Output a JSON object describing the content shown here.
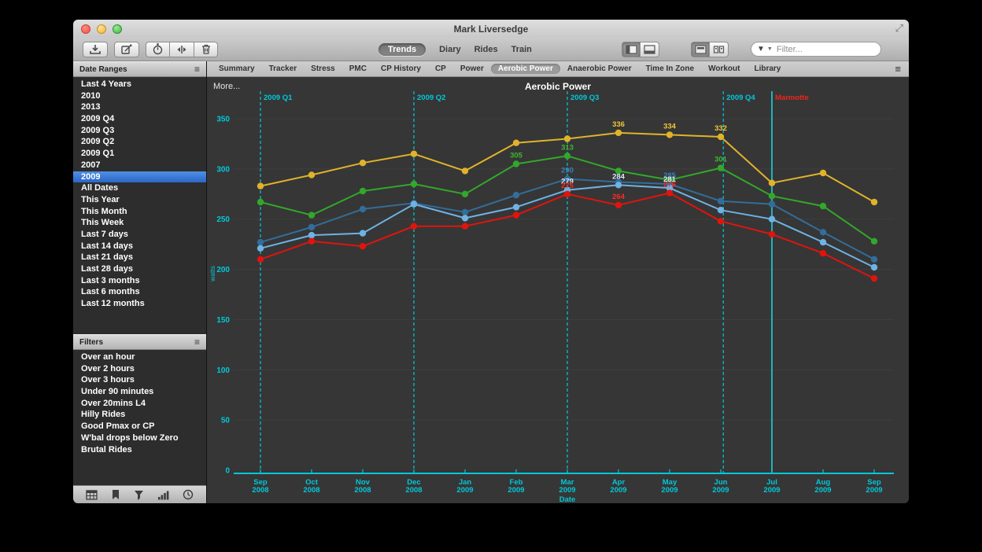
{
  "window": {
    "title": "Mark Liversedge"
  },
  "toolbar": {
    "left_icons": [
      "download-icon",
      "compose-icon",
      "stopwatch-icon",
      "split-compare-icon",
      "trash-icon"
    ],
    "view_segments": {
      "items": [
        "Trends",
        "Diary",
        "Rides",
        "Train"
      ],
      "selected": "Trends"
    },
    "panel_toggles": [
      "sidebar-toggle-icon",
      "bottom-pane-toggle-icon"
    ],
    "layout_toggles": [
      "single-view-icon",
      "tiled-view-icon"
    ],
    "filter": {
      "placeholder": "Filter..."
    }
  },
  "sidebar": {
    "date_ranges": {
      "title": "Date Ranges",
      "selected": "2009",
      "items": [
        "Last 4 Years",
        "2010",
        "2013",
        "2009 Q4",
        "2009 Q3",
        "2009 Q2",
        "2009 Q1",
        "2007",
        "2009",
        "All Dates",
        "This Year",
        "This Month",
        "This Week",
        "Last 7 days",
        "Last 14 days",
        "Last 21 days",
        "Last 28 days",
        "Last 3 months",
        "Last 6 months",
        "Last 12 months"
      ]
    },
    "filters": {
      "title": "Filters",
      "items": [
        "Over an hour",
        "Over 2 hours",
        "Over 3 hours",
        "Under 90 minutes",
        "Over 20mins L4",
        "Hilly Rides",
        "Good Pmax or CP",
        "W'bal drops below Zero",
        "Brutal Rides"
      ]
    },
    "footer_icons": [
      "summary-table-icon",
      "bookmark-icon",
      "filter-funnel-icon",
      "bar-chart-icon",
      "clock-icon"
    ]
  },
  "tabs": {
    "items": [
      "Summary",
      "Tracker",
      "Stress",
      "PMC",
      "CP History",
      "CP",
      "Power",
      "Aerobic Power",
      "Anaerobic Power",
      "Time In Zone",
      "Workout",
      "Library"
    ],
    "selected": "Aerobic Power"
  },
  "chart_data": {
    "type": "line",
    "title": "Aerobic Power",
    "more_label": "More...",
    "xlabel": "Date",
    "ylabel": "watts",
    "ylim": [
      0,
      350
    ],
    "yticks": [
      0,
      50,
      100,
      150,
      200,
      250,
      300,
      350
    ],
    "grid": true,
    "legend_position": "none",
    "axis_color": "#00c8da",
    "grid_color": "#3f3f3f",
    "x_categories": [
      "Sep 2008",
      "Oct 2008",
      "Nov 2008",
      "Dec 2008",
      "Jan 2009",
      "Feb 2009",
      "Mar 2009",
      "Apr 2009",
      "May 2009",
      "Jun 2009",
      "Jul 2009",
      "Aug 2009",
      "Sep 2009"
    ],
    "series": [
      {
        "name": "yellow",
        "color": "#e0b32a",
        "label_color": "#f0c63d",
        "values": [
          283,
          294,
          306,
          315,
          298,
          326,
          330,
          336,
          334,
          332,
          286,
          296,
          267
        ],
        "point_labels": [
          null,
          null,
          null,
          null,
          null,
          null,
          null,
          "336",
          "334",
          "332",
          null,
          null,
          null
        ]
      },
      {
        "name": "green",
        "color": "#32a82a",
        "label_color": "#3cb832",
        "values": [
          267,
          254,
          278,
          285,
          275,
          305,
          313,
          298,
          289,
          301,
          273,
          263,
          228
        ],
        "point_labels": [
          null,
          null,
          null,
          null,
          null,
          "305",
          "313",
          null,
          null,
          "301",
          null,
          null,
          null
        ]
      },
      {
        "name": "steel-blue",
        "color": "#336d99",
        "label_color": "#3d7fb5",
        "values": [
          227,
          242,
          260,
          266,
          257,
          274,
          290,
          287,
          285,
          268,
          265,
          237,
          210
        ],
        "point_labels": [
          null,
          null,
          null,
          null,
          null,
          null,
          "290",
          null,
          "285",
          null,
          null,
          null,
          null
        ]
      },
      {
        "name": "light-blue",
        "color": "#6fb2e4",
        "label_color": "#d8e9f8",
        "values": [
          221,
          234,
          236,
          265,
          251,
          262,
          279,
          284,
          281,
          259,
          250,
          227,
          202
        ],
        "point_labels": [
          null,
          null,
          null,
          null,
          null,
          null,
          "279",
          "284",
          "281",
          null,
          null,
          null,
          null
        ]
      },
      {
        "name": "red",
        "color": "#e0140e",
        "label_color": "#ff2a20",
        "values": [
          210,
          228,
          223,
          243,
          243,
          254,
          275,
          264,
          276,
          248,
          235,
          216,
          191
        ],
        "point_labels": [
          null,
          null,
          null,
          null,
          null,
          null,
          "275",
          "264",
          "276",
          null,
          null,
          null,
          null
        ]
      }
    ],
    "vmarkers": [
      {
        "label": "2009 Q1",
        "x_index": 0,
        "style": "dashed",
        "line_color": "#00c8da",
        "label_color": "#00c8da"
      },
      {
        "label": "2009 Q2",
        "x_index": 3,
        "style": "dashed",
        "line_color": "#00c8da",
        "label_color": "#00c8da"
      },
      {
        "label": "2009 Q3",
        "x_index": 6,
        "style": "dashed",
        "line_color": "#00c8da",
        "label_color": "#00c8da"
      },
      {
        "label": "2009 Q4",
        "x_index": 9.05,
        "style": "dashed",
        "line_color": "#00c8da",
        "label_color": "#00c8da"
      },
      {
        "label": "Marmotte",
        "x_index": 10,
        "style": "solid",
        "line_color": "#1fb2c1",
        "label_color": "#f0241a"
      }
    ]
  }
}
